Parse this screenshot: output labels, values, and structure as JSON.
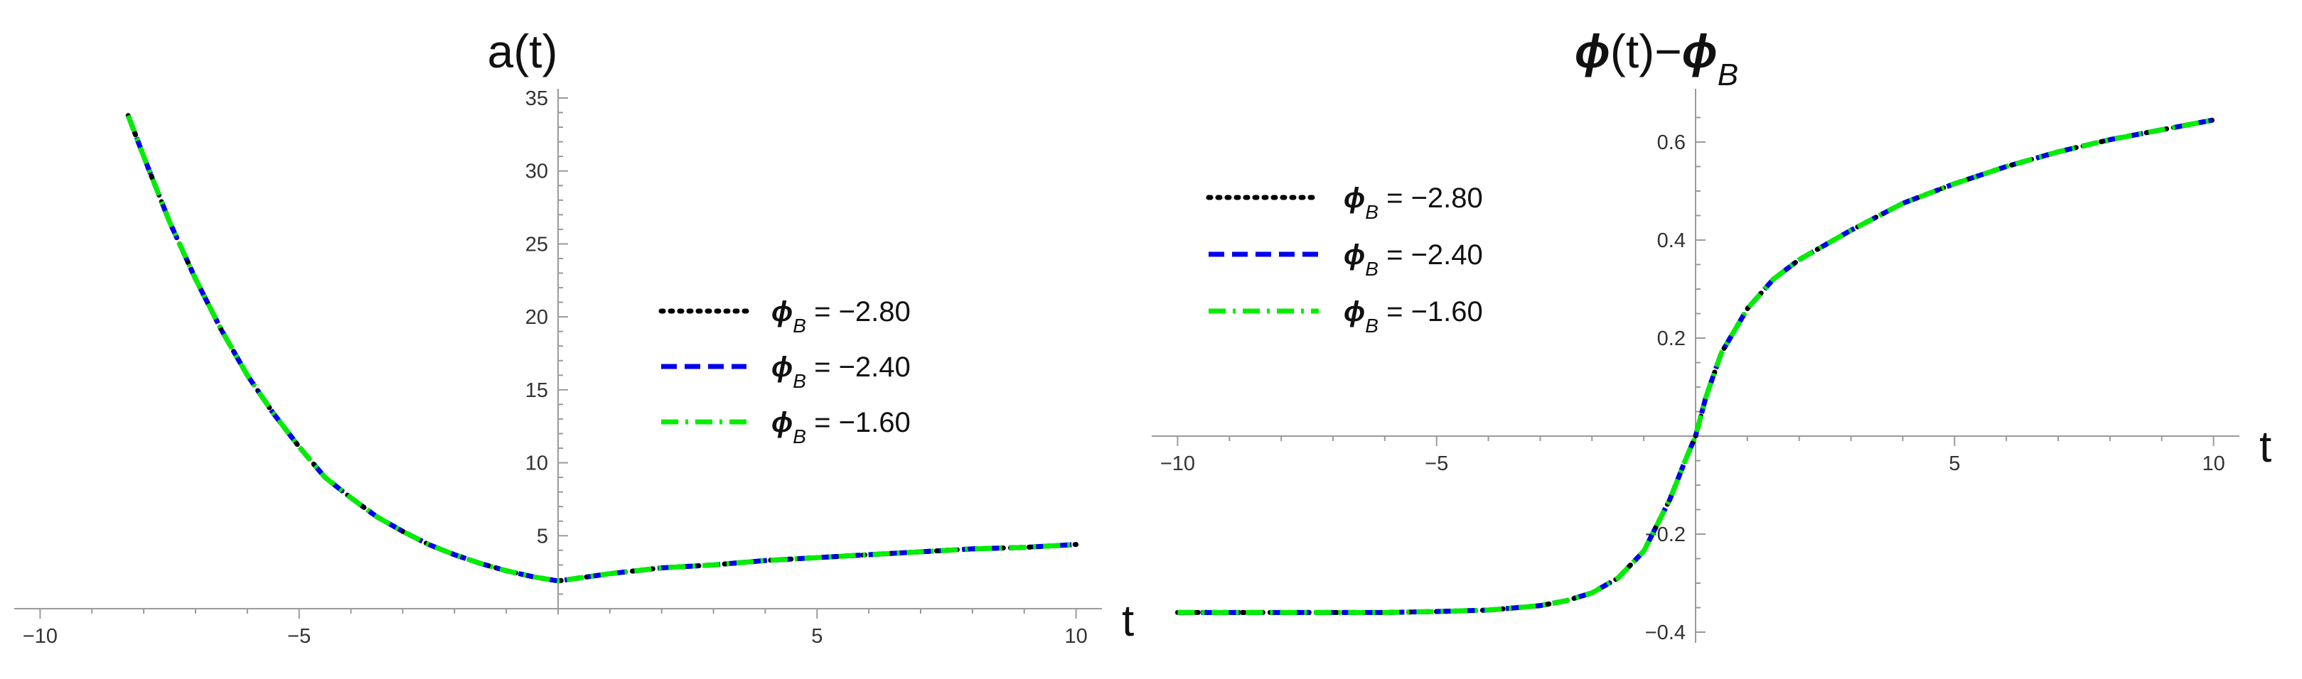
{
  "chart_data": [
    {
      "type": "line",
      "title_base": "a(t)",
      "xlabel": "t",
      "ylabel": "",
      "xlim": [
        -10.5,
        10.5
      ],
      "ylim": [
        0,
        35
      ],
      "x_ticks": [
        -10,
        -5,
        5,
        10
      ],
      "x_tick_labels": [
        "−10",
        "−5",
        "5",
        "10"
      ],
      "y_ticks": [
        5,
        10,
        15,
        20,
        25,
        30,
        35
      ],
      "y_tick_labels": [
        "5",
        "10",
        "15",
        "20",
        "25",
        "30",
        "35"
      ],
      "grid": false,
      "legend_position": "center-right",
      "legend_symbol": "ϕ",
      "legend_sub": "B",
      "series": [
        {
          "name": "= −2.80",
          "color": "#000000",
          "dash": "dotted",
          "x": [
            -8.3,
            -8,
            -7.5,
            -7,
            -6.5,
            -6,
            -5.5,
            -5,
            -4.5,
            -4,
            -3.5,
            -3,
            -2.5,
            -2,
            -1.5,
            -1,
            -0.5,
            0,
            1,
            2,
            3,
            4,
            5,
            6,
            7,
            8,
            9,
            10
          ],
          "y": [
            33.8,
            31.0,
            26.5,
            22.6,
            19.1,
            16.0,
            13.4,
            11.1,
            9.0,
            7.6,
            6.3,
            5.3,
            4.4,
            3.7,
            3.1,
            2.6,
            2.2,
            1.9,
            2.4,
            2.8,
            3.0,
            3.3,
            3.5,
            3.7,
            3.9,
            4.1,
            4.2,
            4.4
          ]
        },
        {
          "name": "= −2.40",
          "color": "#0000ee",
          "dash": "dashed",
          "x": [
            -8.3,
            -8,
            -7.5,
            -7,
            -6.5,
            -6,
            -5.5,
            -5,
            -4.5,
            -4,
            -3.5,
            -3,
            -2.5,
            -2,
            -1.5,
            -1,
            -0.5,
            0,
            1,
            2,
            3,
            4,
            5,
            6,
            7,
            8,
            9,
            10
          ],
          "y": [
            33.8,
            31.0,
            26.5,
            22.6,
            19.1,
            16.0,
            13.4,
            11.1,
            9.0,
            7.6,
            6.3,
            5.3,
            4.4,
            3.7,
            3.1,
            2.6,
            2.2,
            1.9,
            2.4,
            2.8,
            3.0,
            3.3,
            3.5,
            3.7,
            3.9,
            4.1,
            4.2,
            4.4
          ]
        },
        {
          "name": "= −1.60",
          "color": "#00ee00",
          "dash": "dashdot",
          "x": [
            -8.3,
            -8,
            -7.5,
            -7,
            -6.5,
            -6,
            -5.5,
            -5,
            -4.5,
            -4,
            -3.5,
            -3,
            -2.5,
            -2,
            -1.5,
            -1,
            -0.5,
            0,
            1,
            2,
            3,
            4,
            5,
            6,
            7,
            8,
            9,
            10
          ],
          "y": [
            33.8,
            31.0,
            26.5,
            22.6,
            19.1,
            16.0,
            13.4,
            11.1,
            9.0,
            7.6,
            6.3,
            5.3,
            4.4,
            3.7,
            3.1,
            2.6,
            2.2,
            1.9,
            2.4,
            2.8,
            3.0,
            3.3,
            3.5,
            3.7,
            3.9,
            4.1,
            4.2,
            4.4
          ]
        }
      ]
    },
    {
      "type": "line",
      "title_symbol": "ϕ",
      "title_mid": "(t)−",
      "title_symbol2": "ϕ",
      "title_sub": "B",
      "xlabel": "t",
      "ylabel": "",
      "xlim": [
        -10.5,
        10.5
      ],
      "ylim": [
        -0.4,
        0.7
      ],
      "x_ticks": [
        -10,
        -5,
        5,
        10
      ],
      "x_tick_labels": [
        "−10",
        "−5",
        "5",
        "10"
      ],
      "y_ticks": [
        -0.4,
        -0.2,
        0.2,
        0.4,
        0.6
      ],
      "y_tick_labels": [
        "−0.4",
        "−0.2",
        "0.2",
        "0.4",
        "0.6"
      ],
      "grid": false,
      "legend_position": "top-left",
      "legend_symbol": "ϕ",
      "legend_sub": "B",
      "series": [
        {
          "name": "= −2.80",
          "color": "#000000",
          "dash": "dotted",
          "x": [
            -10,
            -8,
            -6,
            -5,
            -4,
            -3,
            -2.5,
            -2,
            -1.5,
            -1,
            -0.5,
            -0.2,
            0,
            0.2,
            0.5,
            1,
            1.5,
            2,
            3,
            4,
            5,
            6,
            7,
            8,
            9,
            10
          ],
          "y": [
            -0.36,
            -0.36,
            -0.36,
            -0.358,
            -0.355,
            -0.346,
            -0.336,
            -0.32,
            -0.29,
            -0.235,
            -0.13,
            -0.05,
            0.0,
            0.08,
            0.17,
            0.26,
            0.32,
            0.36,
            0.42,
            0.475,
            0.515,
            0.55,
            0.58,
            0.605,
            0.625,
            0.645
          ]
        },
        {
          "name": "= −2.40",
          "color": "#0000ee",
          "dash": "dashed",
          "x": [
            -10,
            -8,
            -6,
            -5,
            -4,
            -3,
            -2.5,
            -2,
            -1.5,
            -1,
            -0.5,
            -0.2,
            0,
            0.2,
            0.5,
            1,
            1.5,
            2,
            3,
            4,
            5,
            6,
            7,
            8,
            9,
            10
          ],
          "y": [
            -0.36,
            -0.36,
            -0.36,
            -0.358,
            -0.355,
            -0.346,
            -0.336,
            -0.32,
            -0.29,
            -0.235,
            -0.13,
            -0.05,
            0.0,
            0.08,
            0.17,
            0.26,
            0.32,
            0.36,
            0.42,
            0.475,
            0.515,
            0.55,
            0.58,
            0.605,
            0.625,
            0.645
          ]
        },
        {
          "name": "= −1.60",
          "color": "#00ee00",
          "dash": "dashdot",
          "x": [
            -10,
            -8,
            -6,
            -5,
            -4,
            -3,
            -2.5,
            -2,
            -1.5,
            -1,
            -0.5,
            -0.2,
            0,
            0.2,
            0.5,
            1,
            1.5,
            2,
            3,
            4,
            5,
            6,
            7,
            8,
            9,
            10
          ],
          "y": [
            -0.36,
            -0.36,
            -0.36,
            -0.358,
            -0.355,
            -0.346,
            -0.336,
            -0.32,
            -0.29,
            -0.235,
            -0.13,
            -0.05,
            0.0,
            0.08,
            0.17,
            0.26,
            0.32,
            0.36,
            0.42,
            0.475,
            0.515,
            0.55,
            0.58,
            0.605,
            0.625,
            0.645
          ]
        }
      ]
    }
  ]
}
